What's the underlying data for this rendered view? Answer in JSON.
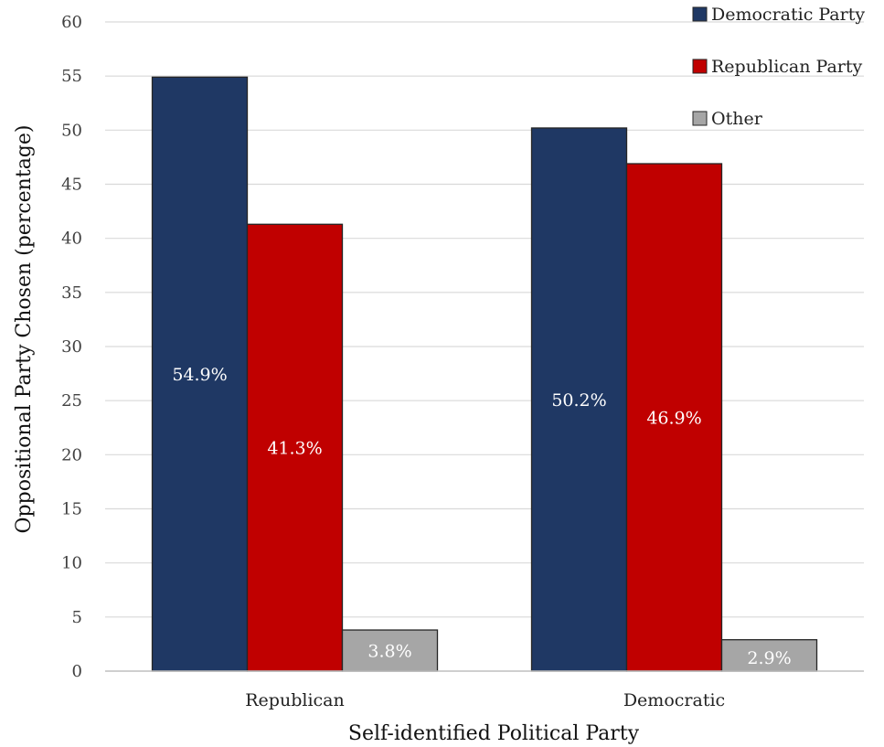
{
  "chart_data": {
    "type": "bar",
    "title": "",
    "xlabel": "Self-identified Political Party",
    "ylabel": "Oppositional Party Chosen (percentage)",
    "ylim": [
      0,
      60
    ],
    "yticks": [
      0,
      5,
      10,
      15,
      20,
      25,
      30,
      35,
      40,
      45,
      50,
      55,
      60
    ],
    "grid": true,
    "legend_position": "top-right",
    "categories": [
      "Republican",
      "Democratic"
    ],
    "series": [
      {
        "name": "Democratic Party",
        "color": "#1f3864",
        "values": [
          54.9,
          50.2
        ],
        "labels": [
          "54.9%",
          "50.2%"
        ],
        "label_color": "#ffffff"
      },
      {
        "name": "Republican Party",
        "color": "#c00000",
        "values": [
          41.3,
          46.9
        ],
        "labels": [
          "41.3%",
          "46.9%"
        ],
        "label_color": "#ffffff"
      },
      {
        "name": "Other",
        "color": "#a6a6a6",
        "values": [
          3.8,
          2.9
        ],
        "labels": [
          "3.8%",
          "2.9%"
        ],
        "label_color": "#ffffff"
      }
    ]
  }
}
